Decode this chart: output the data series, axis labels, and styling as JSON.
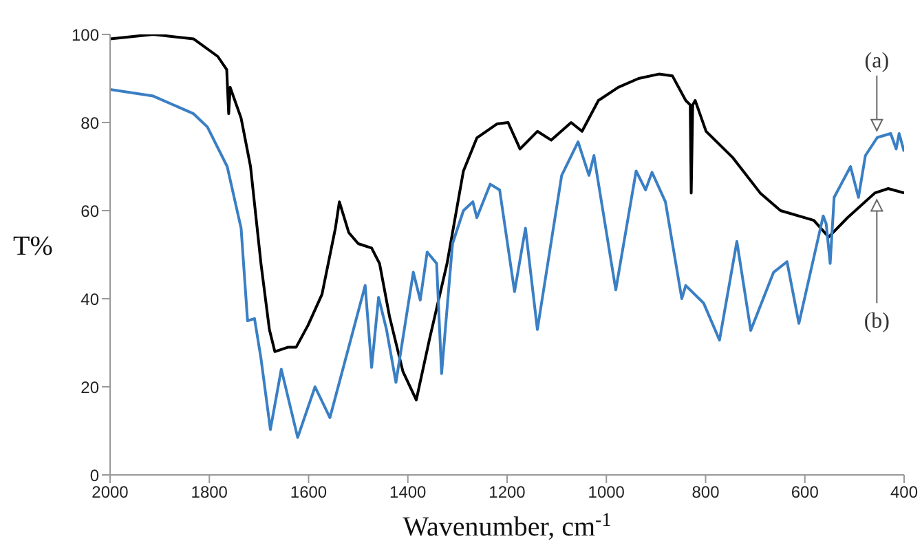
{
  "chart_data": {
    "type": "line",
    "xlabel": "Wavenumber, cm$^{-1}$",
    "ylabel": "T%",
    "xlim": [
      2000,
      400
    ],
    "xticks": [
      2000,
      1800,
      1600,
      1400,
      1200,
      1000,
      800,
      600,
      400
    ],
    "ylim": [
      0,
      100
    ],
    "yticks": [
      0,
      20,
      40,
      60,
      80,
      100
    ],
    "series": [
      {
        "color": "#000000",
        "x": [
          2000,
          1913,
          1832,
          1783,
          1765,
          1761,
          1758,
          1736,
          1717,
          1696,
          1679,
          1668,
          1641,
          1625,
          1601,
          1573,
          1546,
          1538,
          1519,
          1500,
          1473,
          1457,
          1437,
          1410,
          1383,
          1356,
          1321,
          1288,
          1261,
          1220,
          1198,
          1174,
          1139,
          1111,
          1071,
          1049,
          1016,
          976,
          935,
          894,
          867,
          840,
          831,
          829,
          826,
          821,
          799,
          745,
          690,
          649,
          582,
          552,
          514,
          459,
          432,
          400
        ],
        "values": [
          99,
          100,
          99,
          95,
          92,
          82,
          88,
          81,
          70,
          48,
          33,
          28,
          29,
          29,
          34,
          41,
          56,
          62,
          55,
          52.5,
          51.5,
          48,
          36,
          23.5,
          17,
          31,
          48,
          69,
          76.5,
          79.7,
          80,
          74,
          78,
          76,
          80,
          78,
          85,
          88,
          90,
          91,
          90.6,
          85,
          84,
          64,
          84,
          85,
          78,
          72,
          64,
          60,
          57.8,
          54,
          58.4,
          64,
          65,
          64
        ]
      },
      {
        "color": "#3a7fc4",
        "x": [
          2000,
          1913,
          1832,
          1804,
          1764,
          1736,
          1723,
          1709,
          1696,
          1677,
          1655,
          1622,
          1587,
          1557,
          1486,
          1473,
          1459,
          1443,
          1424,
          1389,
          1375,
          1361,
          1342,
          1332,
          1310,
          1288,
          1269,
          1261,
          1234,
          1215,
          1185,
          1163,
          1139,
          1090,
          1057,
          1035,
          1025,
          981,
          940,
          921,
          908,
          881,
          848,
          840,
          804,
          772,
          737,
          709,
          663,
          636,
          612,
          563,
          557,
          549,
          541,
          508,
          492,
          478,
          454,
          427,
          416,
          410,
          400
        ],
        "values": [
          87.5,
          86,
          82,
          79,
          70,
          56,
          35,
          35.5,
          26.5,
          10.3,
          24,
          8.5,
          20,
          13,
          43,
          24.4,
          40.3,
          33,
          21,
          46,
          39.7,
          50.6,
          48,
          23,
          52.5,
          60,
          62,
          58.4,
          66,
          64.7,
          41.6,
          56,
          33,
          68,
          75.6,
          68,
          72.5,
          42,
          69,
          64.7,
          68.7,
          62,
          40,
          43,
          39,
          30.6,
          53,
          32.8,
          46,
          48.4,
          34.4,
          58.8,
          57,
          48,
          63,
          70,
          63,
          72.5,
          76.6,
          77.5,
          74,
          77.5,
          73.4
        ]
      }
    ],
    "annotations": [
      {
        "text": "(a)",
        "x": 455,
        "y": 76.6
      },
      {
        "text": "(b)",
        "x": 455,
        "y": 64
      }
    ]
  }
}
